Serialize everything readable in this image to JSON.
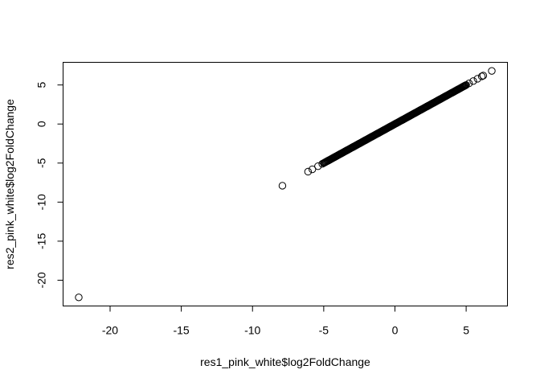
{
  "chart_data": {
    "type": "scatter",
    "title": "",
    "xlabel": "res1_pink_white$log2FoldChange",
    "ylabel": "res2_pink_white$log2FoldChange",
    "xlim": [
      -23.3,
      7.9
    ],
    "ylim": [
      -23.3,
      7.9
    ],
    "xticks": [
      -20,
      -15,
      -10,
      -5,
      0,
      5
    ],
    "yticks": [
      -20,
      -15,
      -10,
      -5,
      0,
      5
    ],
    "xtick_labels": [
      "-20",
      "-15",
      "-10",
      "-5",
      "0",
      "5"
    ],
    "ytick_labels": [
      "-20",
      "-15",
      "-10",
      "-5",
      "0",
      "5"
    ],
    "outliers": [
      {
        "x": -22.2,
        "y": -22.2
      },
      {
        "x": -7.9,
        "y": -7.9
      },
      {
        "x": -6.1,
        "y": -6.1
      },
      {
        "x": -5.8,
        "y": -5.8
      },
      {
        "x": -5.4,
        "y": -5.4
      },
      {
        "x": -5.1,
        "y": -5.1
      },
      {
        "x": 5.2,
        "y": 5.2
      },
      {
        "x": 5.5,
        "y": 5.5
      },
      {
        "x": 5.8,
        "y": 5.8
      },
      {
        "x": 6.1,
        "y": 6.1
      },
      {
        "x": 6.2,
        "y": 6.2
      },
      {
        "x": 6.8,
        "y": 6.8
      }
    ],
    "dense_run": {
      "from": -5.0,
      "to": 5.0,
      "step": 0.05,
      "relation": "y = x"
    }
  }
}
